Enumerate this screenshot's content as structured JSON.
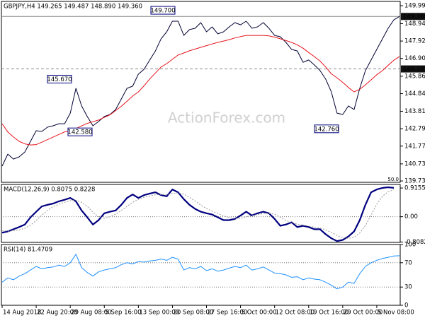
{
  "chart_data": [
    {
      "type": "line",
      "title": "GBPJPY,H4 149.265 149.487 148.890 149.360",
      "watermark": "ActionForex.com",
      "corner_label": "50.0",
      "ylim": [
        139.65,
        150.24
      ],
      "yticks": [
        {
          "value": 149.99,
          "label": "149.990"
        },
        {
          "value": 148.94,
          "label": "148.940"
        },
        {
          "value": 147.92,
          "label": "147.920"
        },
        {
          "value": 146.9,
          "label": "146.900"
        },
        {
          "value": 145.86,
          "label": "145.860"
        },
        {
          "value": 144.84,
          "label": "144.840"
        },
        {
          "value": 143.81,
          "label": "143.810"
        },
        {
          "value": 142.79,
          "label": "142.790"
        },
        {
          "value": 141.77,
          "label": "141.770"
        },
        {
          "value": 140.73,
          "label": "140.730"
        },
        {
          "value": 139.73,
          "label": "139.730"
        }
      ],
      "hlines": [
        {
          "value": 149.36,
          "label": "149.360",
          "style": "solid"
        },
        {
          "value": 146.287,
          "label": "146.287",
          "style": "dashed"
        }
      ],
      "annotations": [
        {
          "value": 149.7,
          "label": "149.700"
        },
        {
          "value": 145.67,
          "label": "145.670"
        },
        {
          "value": 142.58,
          "label": "142.580"
        },
        {
          "value": 142.76,
          "label": "142.760"
        }
      ],
      "series": [
        {
          "color": "#000033",
          "width": 1,
          "values": [
            140.6,
            141.3,
            141.01,
            141.14,
            141.43,
            142.05,
            142.67,
            142.63,
            142.88,
            142.96,
            143.08,
            143.08,
            143.7,
            145.15,
            144.12,
            143.5,
            142.96,
            143.21,
            143.5,
            143.62,
            143.91,
            144.53,
            145.15,
            145.28,
            145.98,
            146.27,
            146.81,
            147.34,
            148.05,
            148.46,
            149.08,
            149.08,
            148.25,
            148.59,
            148.67,
            149.0,
            148.46,
            148.75,
            148.34,
            148.46,
            148.75,
            149.0,
            148.87,
            149.08,
            148.67,
            148.75,
            149.0,
            148.67,
            148.25,
            148.17,
            147.84,
            147.43,
            147.34,
            146.68,
            146.81,
            146.52,
            146.19,
            145.69,
            144.94,
            143.7,
            143.62,
            144.12,
            143.91,
            145.15,
            146.19,
            146.81,
            147.43,
            148.05,
            148.67,
            149.16,
            149.36
          ]
        },
        {
          "color": "#e8141b",
          "width": 1,
          "values": [
            143.08,
            142.6,
            142.3,
            142.05,
            141.9,
            141.84,
            141.86,
            142.0,
            142.15,
            142.3,
            142.45,
            142.6,
            142.67,
            142.8,
            142.95,
            143.1,
            143.2,
            143.3,
            143.45,
            143.6,
            143.85,
            144.1,
            144.4,
            144.7,
            144.94,
            145.3,
            145.7,
            146.05,
            146.4,
            146.6,
            146.85,
            147.1,
            147.22,
            147.35,
            147.45,
            147.55,
            147.65,
            147.75,
            147.84,
            147.92,
            148.0,
            148.1,
            148.18,
            148.25,
            148.25,
            148.25,
            148.25,
            148.22,
            148.15,
            148.05,
            147.95,
            147.84,
            147.7,
            147.5,
            147.25,
            147.01,
            146.75,
            146.4,
            146.0,
            145.77,
            145.5,
            145.2,
            144.94,
            145.1,
            145.36,
            145.65,
            145.95,
            146.19,
            146.5,
            146.8,
            147.01
          ]
        }
      ]
    },
    {
      "type": "line",
      "title": "MACD(12,26,9) 0.8075 0.8228",
      "ylim": [
        -0.82,
        1.03
      ],
      "yticks": [
        0.9155,
        {
          "value": 0,
          "label": "0.00"
        },
        -0.8082
      ],
      "levels": [
        0
      ],
      "series": [
        {
          "color": "#000080",
          "width": 2.2,
          "values": [
            -0.51,
            -0.47,
            -0.4,
            -0.33,
            -0.25,
            -0.02,
            0.16,
            0.33,
            0.38,
            0.42,
            0.49,
            0.54,
            0.6,
            0.49,
            0.2,
            -0.02,
            -0.25,
            -0.11,
            0.11,
            0.16,
            0.2,
            0.38,
            0.6,
            0.71,
            0.6,
            0.69,
            0.74,
            0.78,
            0.69,
            0.65,
            0.87,
            0.78,
            0.56,
            0.38,
            0.25,
            0.16,
            0.11,
            0.07,
            -0.02,
            -0.11,
            -0.11,
            -0.07,
            0.04,
            0.16,
            0.04,
            0.11,
            0.16,
            0.11,
            -0.07,
            -0.29,
            -0.25,
            -0.18,
            -0.33,
            -0.29,
            -0.33,
            -0.4,
            -0.4,
            -0.56,
            -0.69,
            -0.78,
            -0.74,
            -0.63,
            -0.47,
            -0.11,
            0.38,
            0.78,
            0.87,
            0.92,
            0.94,
            0.92,
            null
          ]
        },
        {
          "color": "#9a9a9a",
          "width": 1,
          "dash": true,
          "values": [
            -0.45,
            -0.46,
            -0.45,
            -0.42,
            -0.37,
            -0.27,
            -0.12,
            0.05,
            0.2,
            0.32,
            0.4,
            0.46,
            0.51,
            0.53,
            0.46,
            0.33,
            0.14,
            0.0,
            -0.05,
            0.0,
            0.08,
            0.2,
            0.33,
            0.46,
            0.55,
            0.62,
            0.66,
            0.7,
            0.71,
            0.7,
            0.74,
            0.76,
            0.72,
            0.62,
            0.5,
            0.37,
            0.26,
            0.18,
            0.1,
            0.03,
            -0.03,
            -0.06,
            -0.05,
            0.0,
            0.04,
            0.07,
            0.1,
            0.11,
            0.08,
            -0.02,
            -0.12,
            -0.18,
            -0.24,
            -0.27,
            -0.3,
            -0.33,
            -0.36,
            -0.42,
            -0.5,
            -0.6,
            -0.67,
            -0.69,
            -0.66,
            -0.52,
            -0.28,
            0.05,
            0.4,
            0.65,
            0.8,
            0.86,
            null
          ]
        }
      ]
    },
    {
      "type": "line",
      "title": "RSI(14) 81.4709",
      "ylim": [
        0,
        100
      ],
      "yticks": [
        100,
        70,
        30,
        0
      ],
      "levels": [
        70,
        30
      ],
      "categories": [
        "14 Aug 2018",
        null,
        null,
        null,
        null,
        null,
        "22 Aug 20:00",
        null,
        null,
        null,
        null,
        null,
        "29 Aug 08:00",
        null,
        null,
        null,
        null,
        null,
        "5 Sep 16:00",
        null,
        null,
        null,
        null,
        null,
        "13 Sep 00:00",
        null,
        null,
        null,
        null,
        null,
        "20 Sep 08:00",
        null,
        null,
        null,
        null,
        null,
        "27 Sep 16:00",
        null,
        null,
        null,
        null,
        null,
        "5 Oct 00:00",
        null,
        null,
        null,
        null,
        null,
        "12 Oct 08:00",
        null,
        null,
        null,
        null,
        null,
        "19 Oct 16:00",
        null,
        null,
        null,
        null,
        null,
        "29 Oct 00:00",
        null,
        null,
        null,
        null,
        null,
        "5 Nov 08:00",
        null,
        null,
        null,
        null
      ],
      "series": [
        {
          "color": "#1e90ff",
          "width": 1,
          "values": [
            38,
            45,
            42,
            48,
            52,
            58,
            64,
            60,
            62,
            63,
            66,
            64,
            70,
            84,
            62,
            54,
            48,
            55,
            58,
            60,
            62,
            67,
            70,
            68,
            72,
            71,
            73,
            74,
            76,
            74,
            79,
            76,
            58,
            62,
            60,
            64,
            57,
            60,
            56,
            58,
            61,
            64,
            62,
            66,
            58,
            60,
            63,
            58,
            53,
            52,
            50,
            46,
            47,
            42,
            45,
            43,
            42,
            38,
            33,
            27,
            30,
            38,
            36,
            52,
            64,
            70,
            74,
            77,
            79,
            81,
            81.4709
          ]
        }
      ]
    }
  ]
}
